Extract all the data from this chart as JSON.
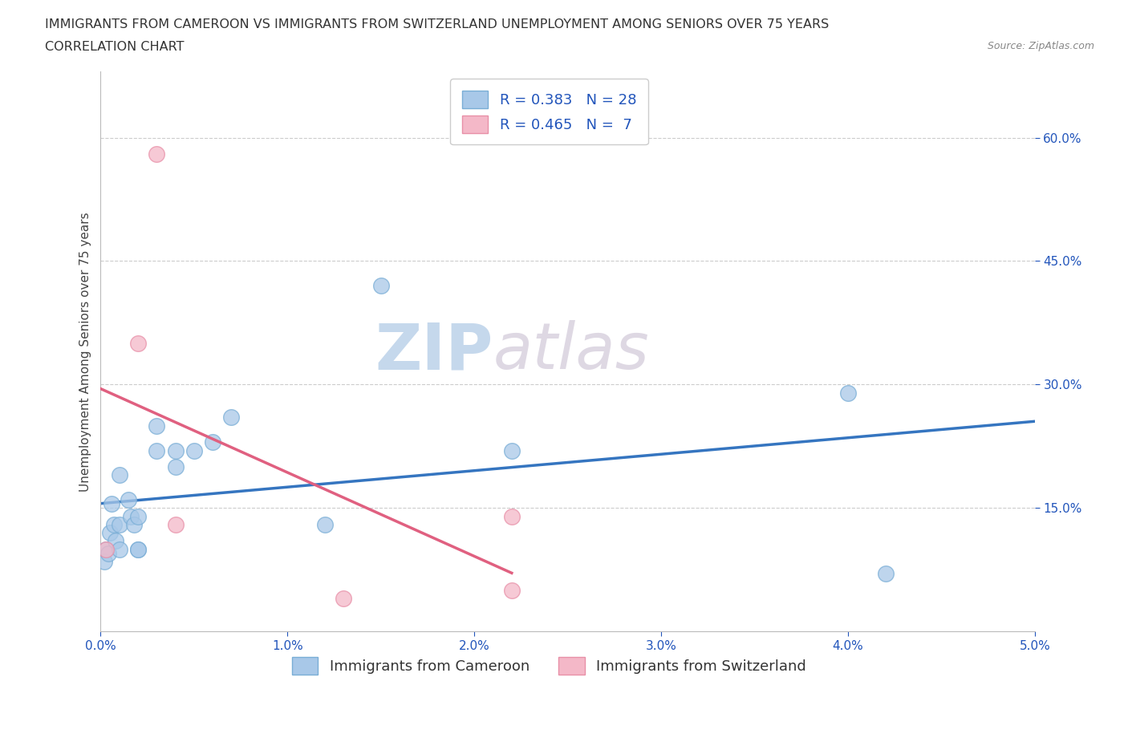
{
  "title_line1": "IMMIGRANTS FROM CAMEROON VS IMMIGRANTS FROM SWITZERLAND UNEMPLOYMENT AMONG SENIORS OVER 75 YEARS",
  "title_line2": "CORRELATION CHART",
  "source": "Source: ZipAtlas.com",
  "ylabel": "Unemployment Among Seniors over 75 years",
  "xlim": [
    0.0,
    0.05
  ],
  "ylim": [
    0.0,
    0.68
  ],
  "xtick_labels": [
    "0.0%",
    "1.0%",
    "2.0%",
    "3.0%",
    "4.0%",
    "5.0%"
  ],
  "xtick_vals": [
    0.0,
    0.01,
    0.02,
    0.03,
    0.04,
    0.05
  ],
  "ytick_labels": [
    "15.0%",
    "30.0%",
    "45.0%",
    "60.0%"
  ],
  "ytick_vals": [
    0.15,
    0.3,
    0.45,
    0.6
  ],
  "watermark_zip": "ZIP",
  "watermark_atlas": "atlas",
  "cameroon_color": "#a8c8e8",
  "cameroon_edge": "#7aaed6",
  "switzerland_color": "#f4b8c8",
  "switzerland_edge": "#e890a8",
  "trend_cameroon_color": "#3575c0",
  "trend_switzerland_color": "#e06080",
  "R_cameroon": "0.383",
  "N_cameroon": "28",
  "R_switzerland": "0.465",
  "N_switzerland": " 7",
  "cameroon_x": [
    0.0002,
    0.0003,
    0.0004,
    0.0005,
    0.0006,
    0.0007,
    0.0008,
    0.001,
    0.001,
    0.001,
    0.0015,
    0.0016,
    0.0018,
    0.002,
    0.002,
    0.002,
    0.003,
    0.003,
    0.004,
    0.004,
    0.005,
    0.006,
    0.007,
    0.012,
    0.015,
    0.022,
    0.04,
    0.042
  ],
  "cameroon_y": [
    0.085,
    0.1,
    0.095,
    0.12,
    0.155,
    0.13,
    0.11,
    0.1,
    0.13,
    0.19,
    0.16,
    0.14,
    0.13,
    0.14,
    0.1,
    0.1,
    0.22,
    0.25,
    0.2,
    0.22,
    0.22,
    0.23,
    0.26,
    0.13,
    0.42,
    0.22,
    0.29,
    0.07
  ],
  "switzerland_x": [
    0.0003,
    0.002,
    0.003,
    0.004,
    0.013,
    0.022,
    0.022
  ],
  "switzerland_y": [
    0.1,
    0.35,
    0.58,
    0.13,
    0.04,
    0.14,
    0.05
  ],
  "background_color": "#ffffff",
  "grid_color": "#cccccc",
  "title_fontsize": 11.5,
  "axis_label_fontsize": 11,
  "tick_fontsize": 11,
  "legend_fontsize": 13,
  "source_fontsize": 9
}
